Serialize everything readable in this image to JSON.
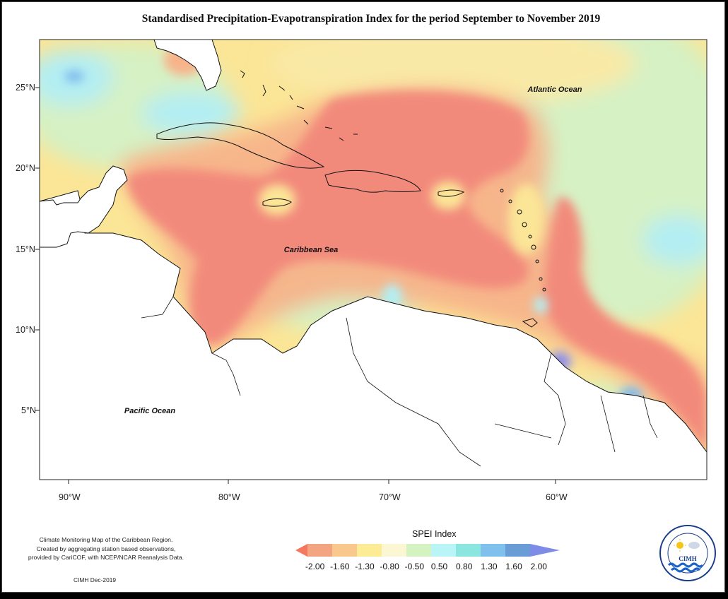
{
  "title": "Standardised Precipitation-Evapotranspiration Index for the period September to November 2019",
  "map_labels": {
    "atlantic": "Atlantic Ocean",
    "caribbean": "Caribbean Sea",
    "pacific": "Pacific Ocean"
  },
  "axes": {
    "lat_ticks": [
      "25°N",
      "20°N",
      "15°N",
      "10°N",
      "5°N"
    ],
    "lon_ticks": [
      "90°W",
      "80°W",
      "70°W",
      "60°W"
    ]
  },
  "legend": {
    "title": "SPEI Index",
    "values": [
      "-2.00",
      "-1.60",
      "-1.30",
      "-0.80",
      "-0.50",
      "0.50",
      "0.80",
      "1.30",
      "1.60",
      "2.00"
    ],
    "colors": [
      "#f4775e",
      "#f3a582",
      "#f8c88c",
      "#fcec96",
      "#fbf7d2",
      "#d4f3c0",
      "#b9f5f6",
      "#8be6e0",
      "#7fc1ec",
      "#6a9cd6",
      "#7e8ce8"
    ]
  },
  "credit": {
    "line1": "Climate Monitoring Map of the Caribbean Region.",
    "line2": "Created by aggregating station based observations,",
    "line3": "provided by CariCOF, with NCEP/NCAR Reanalysis Data.",
    "date": "CIMH Dec-2019"
  },
  "logo": {
    "text": "CIMH",
    "ring_text": "Caribbean Institute for Meteorology and Hydrology"
  },
  "colors": {
    "dry_extreme": "#f28a7c",
    "dry_moderate": "#f7b38a",
    "dry_mild": "#fbe596",
    "normal": "#d6f1c4",
    "wet": "#b3eef3",
    "very_wet": "#7db7ec",
    "extreme_wet": "#8c8ceb"
  }
}
